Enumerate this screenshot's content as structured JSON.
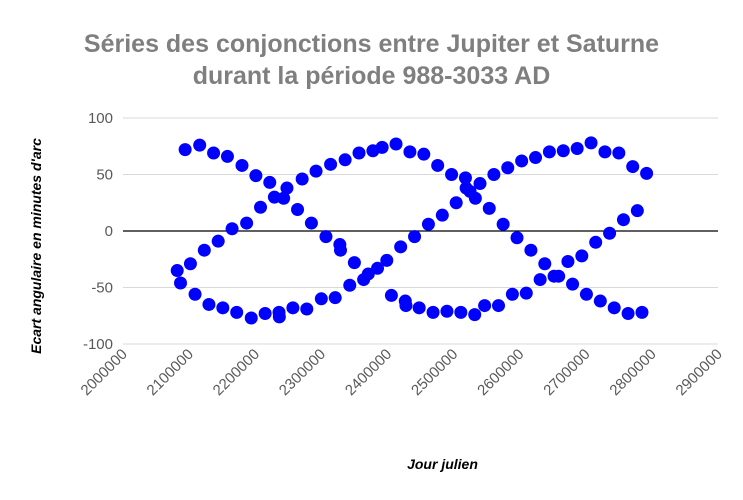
{
  "chart_data": {
    "type": "scatter",
    "title_line1": "Séries des conjonctions entre Jupiter et Saturne",
    "title_line2": "durant la période 988-3033 AD",
    "xlabel": "Jour julien",
    "ylabel": "Ecart angulaire en minutes d'arc",
    "xlim": [
      2000000,
      2900000
    ],
    "ylim": [
      -100,
      100
    ],
    "x_ticks": [
      2000000,
      2100000,
      2200000,
      2300000,
      2400000,
      2500000,
      2600000,
      2700000,
      2800000,
      2900000
    ],
    "y_ticks": [
      100,
      50,
      0,
      -50,
      -100
    ],
    "grid": true,
    "legend": "none",
    "marker_color": "#0000ff",
    "points": [
      [
        2082000,
        -35
      ],
      [
        2087000,
        -46
      ],
      [
        2094000,
        72
      ],
      [
        2102000,
        -29
      ],
      [
        2109000,
        -56
      ],
      [
        2116000,
        76
      ],
      [
        2123000,
        -17
      ],
      [
        2130000,
        -65
      ],
      [
        2137000,
        69
      ],
      [
        2144000,
        -9
      ],
      [
        2151000,
        -68
      ],
      [
        2158000,
        66
      ],
      [
        2165000,
        2
      ],
      [
        2172000,
        -72
      ],
      [
        2180000,
        58
      ],
      [
        2187000,
        7
      ],
      [
        2194000,
        -77
      ],
      [
        2201000,
        49
      ],
      [
        2208000,
        21
      ],
      [
        2215000,
        -73
      ],
      [
        2222000,
        43
      ],
      [
        2229000,
        30
      ],
      [
        2236000,
        -72
      ],
      [
        2236500,
        -76
      ],
      [
        2243000,
        29
      ],
      [
        2248000,
        38
      ],
      [
        2257000,
        -68
      ],
      [
        2264000,
        19
      ],
      [
        2271000,
        46
      ],
      [
        2278000,
        -69
      ],
      [
        2285000,
        7
      ],
      [
        2292000,
        53
      ],
      [
        2300000,
        -60
      ],
      [
        2307000,
        -5
      ],
      [
        2314000,
        59
      ],
      [
        2321000,
        -59
      ],
      [
        2328000,
        -12
      ],
      [
        2329000,
        -17
      ],
      [
        2336000,
        63
      ],
      [
        2343000,
        -48
      ],
      [
        2350000,
        -28
      ],
      [
        2357000,
        69
      ],
      [
        2364000,
        -43
      ],
      [
        2371000,
        -38
      ],
      [
        2378000,
        71
      ],
      [
        2385000,
        -33
      ],
      [
        2392000,
        74
      ],
      [
        2399000,
        -26
      ],
      [
        2406000,
        -57
      ],
      [
        2413000,
        77
      ],
      [
        2420000,
        -14
      ],
      [
        2427000,
        -62
      ],
      [
        2428000,
        -66
      ],
      [
        2434000,
        70
      ],
      [
        2441000,
        -5
      ],
      [
        2448000,
        -68
      ],
      [
        2455000,
        68
      ],
      [
        2462000,
        6
      ],
      [
        2469000,
        -72
      ],
      [
        2476000,
        58
      ],
      [
        2483000,
        14
      ],
      [
        2490000,
        -71
      ],
      [
        2497000,
        50
      ],
      [
        2504000,
        25
      ],
      [
        2511000,
        -72
      ],
      [
        2518000,
        47
      ],
      [
        2519000,
        38
      ],
      [
        2525000,
        35
      ],
      [
        2532000,
        -74
      ],
      [
        2533000,
        29
      ],
      [
        2540000,
        42
      ],
      [
        2547000,
        -66
      ],
      [
        2554000,
        20
      ],
      [
        2561000,
        50
      ],
      [
        2568000,
        -66
      ],
      [
        2575000,
        6
      ],
      [
        2582000,
        56
      ],
      [
        2589000,
        -56
      ],
      [
        2596000,
        -6
      ],
      [
        2603000,
        62
      ],
      [
        2610000,
        -55
      ],
      [
        2617000,
        -17
      ],
      [
        2624000,
        65
      ],
      [
        2631000,
        -43
      ],
      [
        2638000,
        -29
      ],
      [
        2645000,
        70
      ],
      [
        2652000,
        -40
      ],
      [
        2659000,
        -40
      ],
      [
        2666000,
        71
      ],
      [
        2673000,
        -27
      ],
      [
        2680000,
        -47
      ],
      [
        2687000,
        73
      ],
      [
        2694000,
        -22
      ],
      [
        2701000,
        -56
      ],
      [
        2708000,
        78
      ],
      [
        2715000,
        -10
      ],
      [
        2722000,
        -62
      ],
      [
        2729000,
        70
      ],
      [
        2736000,
        -2
      ],
      [
        2743000,
        -68
      ],
      [
        2750000,
        69
      ],
      [
        2757000,
        10
      ],
      [
        2764000,
        -73
      ],
      [
        2771000,
        57
      ],
      [
        2778000,
        18
      ],
      [
        2785000,
        -72
      ],
      [
        2792000,
        51
      ]
    ]
  }
}
